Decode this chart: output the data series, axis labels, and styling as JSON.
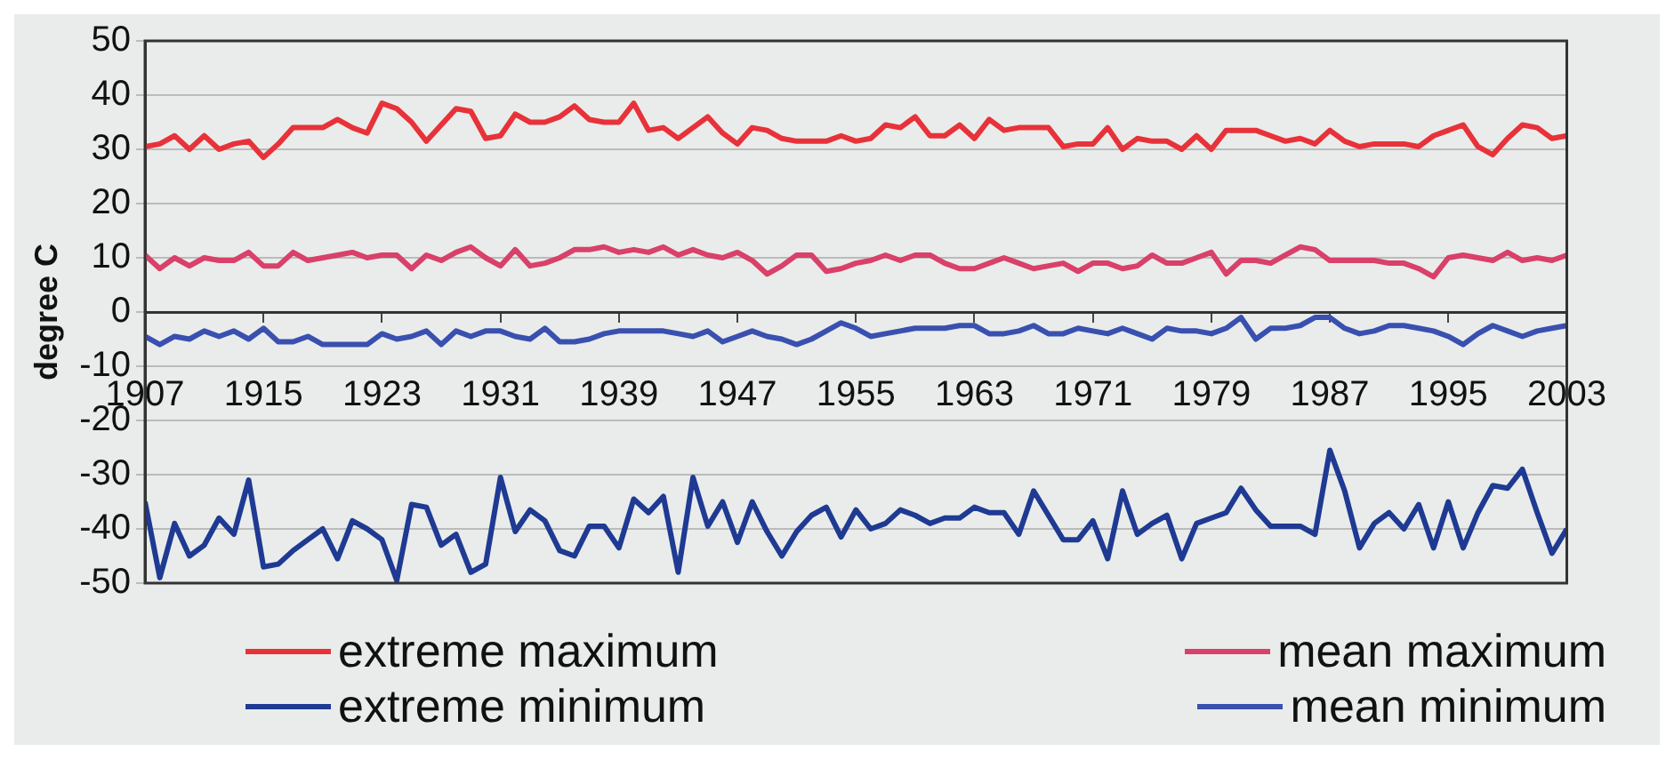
{
  "chart_data": {
    "type": "line",
    "ylabel": "degree C",
    "x": [
      1907,
      1908,
      1909,
      1910,
      1911,
      1912,
      1913,
      1914,
      1915,
      1916,
      1917,
      1918,
      1919,
      1920,
      1921,
      1922,
      1923,
      1924,
      1925,
      1926,
      1927,
      1928,
      1929,
      1930,
      1931,
      1932,
      1933,
      1934,
      1935,
      1936,
      1937,
      1938,
      1939,
      1940,
      1941,
      1942,
      1943,
      1944,
      1945,
      1946,
      1947,
      1948,
      1949,
      1950,
      1951,
      1952,
      1953,
      1954,
      1955,
      1956,
      1957,
      1958,
      1959,
      1960,
      1961,
      1962,
      1963,
      1964,
      1965,
      1966,
      1967,
      1968,
      1969,
      1970,
      1971,
      1972,
      1973,
      1974,
      1975,
      1976,
      1977,
      1978,
      1979,
      1980,
      1981,
      1982,
      1983,
      1984,
      1985,
      1986,
      1987,
      1988,
      1989,
      1990,
      1991,
      1992,
      1993,
      1994,
      1995,
      1996,
      1997,
      1998,
      1999,
      2000,
      2001,
      2002,
      2003
    ],
    "xlim": [
      1907,
      2003
    ],
    "xticks": [
      1907,
      1915,
      1923,
      1931,
      1939,
      1947,
      1955,
      1963,
      1971,
      1979,
      1987,
      1995,
      2003
    ],
    "ylim": [
      -50,
      50
    ],
    "yticks": [
      -50,
      -40,
      -30,
      -20,
      -10,
      0,
      10,
      20,
      30,
      40,
      50
    ],
    "grid": "y",
    "legend": "bottom",
    "marker": "none",
    "line_style": "solid",
    "series": [
      {
        "name": "extreme maximum",
        "color": "#e8323a",
        "values": [
          30.5,
          31,
          32.5,
          30,
          32.5,
          30,
          31,
          31.5,
          28.5,
          31,
          34,
          34,
          34,
          35.5,
          34,
          33,
          38.5,
          37.5,
          35,
          31.5,
          34.5,
          37.5,
          37,
          32,
          32.5,
          36.5,
          35,
          35,
          36,
          38,
          35.5,
          35,
          35,
          38.5,
          33.5,
          34,
          32,
          34,
          36,
          33,
          31,
          34,
          33.5,
          32,
          31.5,
          31.5,
          31.5,
          32.5,
          31.5,
          32,
          34.5,
          34,
          36,
          32.5,
          32.5,
          34.5,
          32,
          35.5,
          33.5,
          34,
          34,
          34,
          30.5,
          31,
          31,
          34,
          30,
          32,
          31.5,
          31.5,
          30,
          32.5,
          30,
          33.5,
          33.5,
          33.5,
          32.5,
          31.5,
          32,
          31,
          33.5,
          31.5,
          30.5,
          31,
          31,
          31,
          30.5,
          32.5,
          33.5,
          34.5,
          30.5,
          29,
          32,
          34.5,
          34,
          32,
          32.5
        ]
      },
      {
        "name": "mean maximum",
        "color": "#d9406a",
        "values": [
          10.5,
          8,
          10,
          8.5,
          10,
          9.5,
          9.5,
          11,
          8.5,
          8.5,
          11,
          9.5,
          10,
          10.5,
          11,
          10,
          10.5,
          10.5,
          8,
          10.5,
          9.5,
          11,
          12,
          10,
          8.5,
          11.5,
          8.5,
          9,
          10,
          11.5,
          11.5,
          12,
          11,
          11.5,
          11,
          12,
          10.5,
          11.5,
          10.5,
          10,
          11,
          9.5,
          7,
          8.5,
          10.5,
          10.5,
          7.5,
          8,
          9,
          9.5,
          10.5,
          9.5,
          10.5,
          10.5,
          9,
          8,
          8,
          9,
          10,
          9,
          8,
          8.5,
          9,
          7.5,
          9,
          9,
          8,
          8.5,
          10.5,
          9,
          9,
          10,
          11,
          7,
          9.5,
          9.5,
          9,
          10.5,
          12,
          11.5,
          9.5,
          9.5,
          9.5,
          9.5,
          9,
          9,
          8,
          6.5,
          10,
          10.5,
          10,
          9.5,
          11,
          9.5,
          10,
          9.5,
          10.5
        ]
      },
      {
        "name": "extreme minimum",
        "color": "#1f3a93",
        "values": [
          -35,
          -49,
          -39,
          -45,
          -43,
          -38,
          -41,
          -31,
          -47,
          -46.5,
          -44,
          -42,
          -40,
          -45.5,
          -38.5,
          -40,
          -42,
          -49.5,
          -35.5,
          -36,
          -43,
          -41,
          -48,
          -46.5,
          -30.5,
          -40.5,
          -36.5,
          -38.5,
          -44,
          -45,
          -39.5,
          -39.5,
          -43.5,
          -34.5,
          -37,
          -34,
          -48,
          -30.5,
          -39.5,
          -35,
          -42.5,
          -35,
          -40.5,
          -45,
          -40.5,
          -37.5,
          -36,
          -41.5,
          -36.5,
          -40,
          -39,
          -36.5,
          -37.5,
          -39,
          -38,
          -38,
          -36,
          -37,
          -37,
          -41,
          -33,
          -37.5,
          -42,
          -42,
          -38.5,
          -45.5,
          -33,
          -41,
          -39,
          -37.5,
          -45.5,
          -39,
          -38,
          -37,
          -32.5,
          -36.5,
          -39.5,
          -39.5,
          -39.5,
          -41,
          -25.5,
          -33,
          -43.5,
          -39,
          -37,
          -40,
          -35.5,
          -43.5,
          -35,
          -43.5,
          -37,
          -32,
          -32.5,
          -29,
          -37,
          -44.5,
          -40
        ]
      },
      {
        "name": "mean minimum",
        "color": "#3a50b0",
        "values": [
          -4.5,
          -6,
          -4.5,
          -5,
          -3.5,
          -4.5,
          -3.5,
          -5,
          -3,
          -5.5,
          -5.5,
          -4.5,
          -6,
          -6,
          -6,
          -6,
          -4,
          -5,
          -4.5,
          -3.5,
          -6,
          -3.5,
          -4.5,
          -3.5,
          -3.5,
          -4.5,
          -5,
          -3,
          -5.5,
          -5.5,
          -5,
          -4,
          -3.5,
          -3.5,
          -3.5,
          -3.5,
          -4,
          -4.5,
          -3.5,
          -5.5,
          -4.5,
          -3.5,
          -4.5,
          -5,
          -6,
          -5,
          -3.5,
          -2,
          -3,
          -4.5,
          -4,
          -3.5,
          -3,
          -3,
          -3,
          -2.5,
          -2.5,
          -4,
          -4,
          -3.5,
          -2.5,
          -4,
          -4,
          -3,
          -3.5,
          -4,
          -3,
          -4,
          -5,
          -3,
          -3.5,
          -3.5,
          -4,
          -3,
          -1,
          -5,
          -3,
          -3,
          -2.5,
          -1,
          -1,
          -3,
          -4,
          -3.5,
          -2.5,
          -2.5,
          -3,
          -3.5,
          -4.5,
          -6,
          -4,
          -2.5,
          -3.5,
          -4.5,
          -3.5,
          -3,
          -2.5
        ]
      }
    ]
  }
}
